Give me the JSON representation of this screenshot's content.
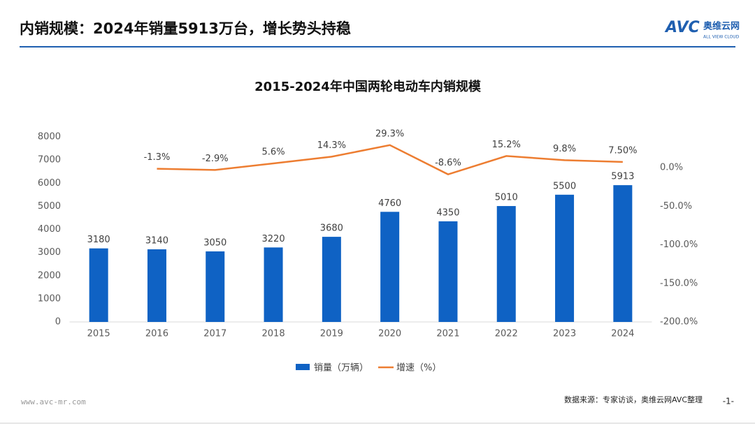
{
  "header": {
    "title": "内销规模：2024年销量5913万台，增长势头持稳",
    "logo": "AVC",
    "logo_cn": "奥维云网",
    "logo_en": "ALL VIEW CLOUD"
  },
  "footer": {
    "site": "www.avc-mr.com",
    "source": "数据来源：专家访谈，奥维云网AVC整理",
    "page": "-1-"
  },
  "chart_data": {
    "type": "bar_line",
    "title": "2015-2024年中国两轮电动车内销规模",
    "categories": [
      "2015",
      "2016",
      "2017",
      "2018",
      "2019",
      "2020",
      "2021",
      "2022",
      "2023",
      "2024"
    ],
    "series": [
      {
        "name": "销量（万辆）",
        "type": "bar",
        "color": "#0f62c4",
        "values": [
          3180,
          3140,
          3050,
          3220,
          3680,
          4760,
          4350,
          5010,
          5500,
          5913
        ]
      },
      {
        "name": "增速（%）",
        "type": "line",
        "axis": "y2",
        "color": "#ed7d31",
        "values": [
          null,
          -1.3,
          -2.9,
          5.6,
          14.3,
          29.3,
          -8.6,
          15.2,
          9.8,
          7.5
        ],
        "value_labels": [
          null,
          "-1.3%",
          "-2.9%",
          "5.6%",
          "14.3%",
          "29.3%",
          "-8.6%",
          "15.2%",
          "9.8%",
          "7.50%"
        ]
      }
    ],
    "ylim": [
      0,
      8000
    ],
    "yticks": [
      0,
      1000,
      2000,
      3000,
      4000,
      5000,
      6000,
      7000,
      8000
    ],
    "y2lim": [
      -200,
      40
    ],
    "y2ticks": [
      {
        "value": 0,
        "label": "0.0%"
      },
      {
        "value": -50,
        "label": "-50.0%"
      },
      {
        "value": -100,
        "label": "-100.0%"
      },
      {
        "value": -150,
        "label": "-150.0%"
      },
      {
        "value": -200,
        "label": "-200.0%"
      }
    ],
    "grid": false,
    "legend": "bottom"
  }
}
